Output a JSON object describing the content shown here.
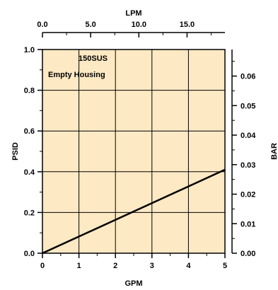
{
  "chart_data": {
    "type": "line",
    "annotations": [
      "150SUS",
      "Empty Housing"
    ],
    "xlabel": "GPM",
    "ylabel": "PSID",
    "x2label": "LPM",
    "y2label": "BAR",
    "xlim": [
      0,
      5
    ],
    "ylim": [
      0,
      1.0
    ],
    "x2lim": [
      0,
      18.93
    ],
    "y2lim": [
      0,
      0.069
    ],
    "grid": true,
    "background_color": "#fde9c4",
    "line_color": "#000000",
    "x_ticks": [
      "0",
      "1",
      "2",
      "3",
      "4",
      "5"
    ],
    "x_tick_values": [
      0,
      1,
      2,
      3,
      4,
      5
    ],
    "y_ticks": [
      "0.0",
      "0.2",
      "0.4",
      "0.6",
      "0.8",
      "1.0"
    ],
    "y_tick_values": [
      0,
      0.2,
      0.4,
      0.6,
      0.8,
      1.0
    ],
    "x2_ticks": [
      "0.0",
      "5.0",
      "10.0",
      "15.0"
    ],
    "x2_tick_values": [
      0,
      5,
      10,
      15
    ],
    "y2_ticks": [
      "0.00",
      "0.01",
      "0.02",
      "0.03",
      "0.04",
      "0.05",
      "0.06"
    ],
    "y2_tick_values": [
      0,
      0.01,
      0.02,
      0.03,
      0.04,
      0.05,
      0.06
    ],
    "series": [
      {
        "x": [
          0,
          5
        ],
        "y": [
          0,
          0.41
        ]
      }
    ]
  }
}
